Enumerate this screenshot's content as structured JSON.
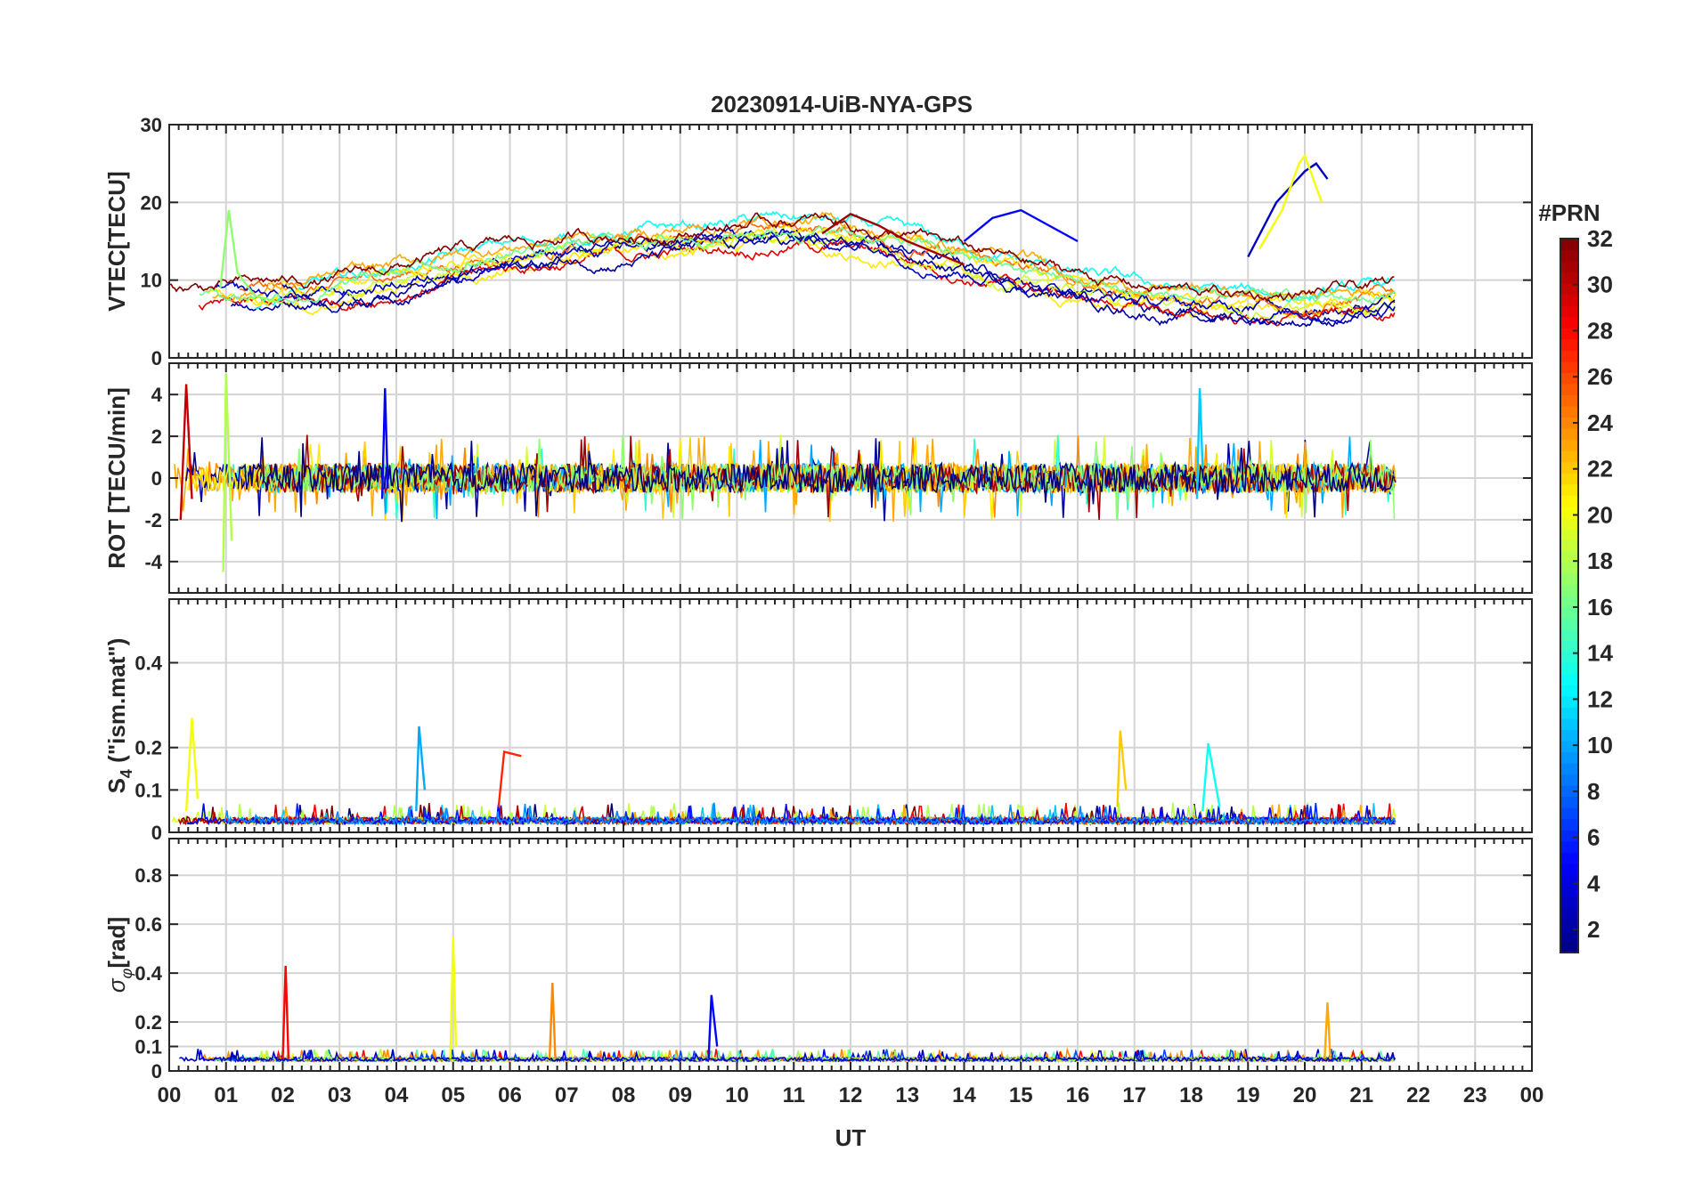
{
  "chart_data": {
    "title": "20230914-UiB-NYA-GPS",
    "xlabel": "UT",
    "x_range_hours": [
      0,
      24
    ],
    "x_tick_labels": [
      "00",
      "01",
      "02",
      "03",
      "04",
      "05",
      "06",
      "07",
      "08",
      "09",
      "10",
      "11",
      "12",
      "13",
      "14",
      "15",
      "16",
      "17",
      "18",
      "19",
      "20",
      "21",
      "22",
      "23",
      "00"
    ],
    "data_end_hour": 21.6,
    "colorbar": {
      "label": "#PRN",
      "range": [
        1,
        32
      ],
      "tick_labels": [
        "2",
        "4",
        "6",
        "8",
        "10",
        "12",
        "14",
        "16",
        "18",
        "20",
        "22",
        "24",
        "26",
        "28",
        "30",
        "32"
      ],
      "colormap": "jet"
    },
    "panels": [
      {
        "name": "vtec",
        "type": "line",
        "ylabel": "VTEC[TECU]",
        "ylim": [
          0,
          30
        ],
        "y_tick_labels": [
          "0",
          "10",
          "20",
          "30"
        ],
        "series": [
          {
            "name": "PRN 3",
            "prn": 3,
            "x": [
              19.0,
              19.5,
              20.0,
              20.2,
              20.4
            ],
            "values": [
              13,
              20,
              24,
              25,
              23
            ]
          },
          {
            "name": "PRN 20",
            "prn": 20,
            "x": [
              19.2,
              19.6,
              19.9,
              20.0,
              20.3
            ],
            "values": [
              14,
              19,
              25,
              26,
              20
            ]
          },
          {
            "name": "PRN 17",
            "prn": 17,
            "x": [
              0.9,
              1.05,
              1.2,
              1.5,
              2.0
            ],
            "values": [
              9,
              19,
              11,
              8,
              7
            ]
          },
          {
            "name": "PRN 31",
            "prn": 31,
            "x": [
              11.5,
              12.0,
              12.5,
              13.0,
              14.0
            ],
            "values": [
              16,
              18.5,
              17,
              15,
              12
            ]
          },
          {
            "name": "PRN 5",
            "prn": 5,
            "x": [
              14.0,
              14.5,
              15.0,
              15.5,
              16.0
            ],
            "values": [
              15,
              18,
              19,
              17,
              15
            ]
          }
        ]
      },
      {
        "name": "rot",
        "type": "line",
        "ylabel": "ROT [TECU/min]",
        "ylim": [
          -5.5,
          5.5
        ],
        "y_tick_labels": [
          "-4",
          "-2",
          "0",
          "2",
          "4"
        ],
        "series": [
          {
            "name": "PRN 30",
            "prn": 30,
            "x": [
              0.2,
              0.3,
              0.4
            ],
            "values": [
              -2,
              4.5,
              -1
            ]
          },
          {
            "name": "PRN 18",
            "prn": 18,
            "x": [
              0.95,
              1.0,
              1.1
            ],
            "values": [
              -4.5,
              5,
              -3
            ]
          },
          {
            "name": "PRN 5",
            "prn": 5,
            "x": [
              3.75,
              3.8,
              3.85
            ],
            "values": [
              -1,
              4.3,
              -0.5
            ]
          },
          {
            "name": "PRN 11",
            "prn": 11,
            "x": [
              18.1,
              18.15,
              18.2
            ],
            "values": [
              -1,
              4.3,
              0.5
            ]
          }
        ]
      },
      {
        "name": "s4",
        "type": "line",
        "ylabel": "S4 (\"ism.mat\")",
        "ylabel_main": "S",
        "ylabel_sub": "4",
        "ylabel_rest": " (\"ism.mat\")",
        "ylim": [
          0,
          0.55
        ],
        "y_tick_labels": [
          "0",
          "0.1",
          "0.2",
          "0.4"
        ],
        "series": [
          {
            "name": "PRN 20",
            "prn": 20,
            "x": [
              0.3,
              0.4,
              0.5
            ],
            "values": [
              0.05,
              0.27,
              0.08
            ]
          },
          {
            "name": "PRN 10",
            "prn": 10,
            "x": [
              4.35,
              4.4,
              4.5
            ],
            "values": [
              0.05,
              0.25,
              0.1
            ]
          },
          {
            "name": "PRN 27",
            "prn": 27,
            "x": [
              5.8,
              5.9,
              6.2
            ],
            "values": [
              0.06,
              0.19,
              0.18
            ]
          },
          {
            "name": "PRN 22",
            "prn": 22,
            "x": [
              16.7,
              16.75,
              16.85
            ],
            "values": [
              0.06,
              0.24,
              0.1
            ]
          },
          {
            "name": "PRN 13",
            "prn": 13,
            "x": [
              18.2,
              18.3,
              18.5
            ],
            "values": [
              0.05,
              0.21,
              0.06
            ]
          }
        ]
      },
      {
        "name": "sigma_phi",
        "type": "line",
        "ylabel": "σφ [rad]",
        "ylabel_main": "σ",
        "ylabel_sub": "φ",
        "ylabel_rest": "[rad]",
        "ylim": [
          0,
          0.95
        ],
        "y_tick_labels": [
          "0",
          "0.1",
          "0.2",
          "0.4",
          "0.6",
          "0.8"
        ],
        "series": [
          {
            "name": "PRN 28",
            "prn": 28,
            "x": [
              2.0,
              2.05,
              2.1
            ],
            "values": [
              0.05,
              0.43,
              0.05
            ]
          },
          {
            "name": "PRN 20",
            "prn": 20,
            "x": [
              4.95,
              5.0,
              5.05
            ],
            "values": [
              0.05,
              0.55,
              0.1
            ]
          },
          {
            "name": "PRN 24",
            "prn": 24,
            "x": [
              6.7,
              6.75,
              6.8
            ],
            "values": [
              0.05,
              0.36,
              0.05
            ]
          },
          {
            "name": "PRN 5",
            "prn": 5,
            "x": [
              9.5,
              9.55,
              9.65
            ],
            "values": [
              0.05,
              0.31,
              0.1
            ]
          },
          {
            "name": "PRN 23",
            "prn": 23,
            "x": [
              20.35,
              20.4,
              20.45
            ],
            "values": [
              0.05,
              0.28,
              0.05
            ]
          }
        ]
      }
    ]
  }
}
